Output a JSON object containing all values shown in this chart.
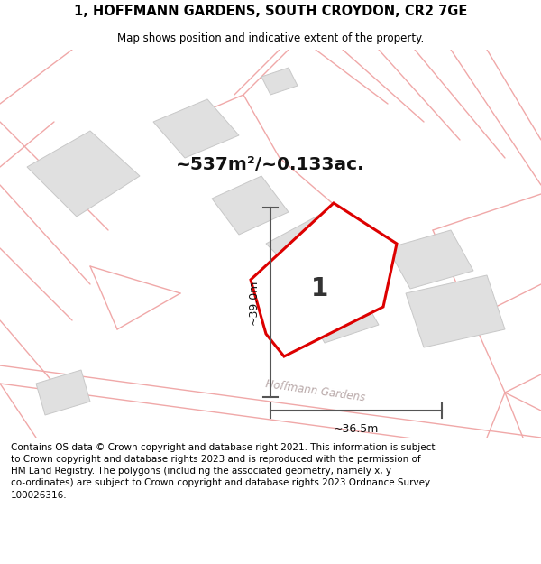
{
  "title_line1": "1, HOFFMANN GARDENS, SOUTH CROYDON, CR2 7GE",
  "title_line2": "Map shows position and indicative extent of the property.",
  "area_text": "~537m²/~0.133ac.",
  "label_number": "1",
  "dim_vertical": "~39.0m",
  "dim_horizontal": "~36.5m",
  "road_label": "Hoffmann Gardens",
  "footer_text": "Contains OS data © Crown copyright and database right 2021. This information is subject to Crown copyright and database rights 2023 and is reproduced with the permission of HM Land Registry. The polygons (including the associated geometry, namely x, y co-ordinates) are subject to Crown copyright and database rights 2023 Ordnance Survey 100026316.",
  "bg_color": "#ffffff",
  "map_bg_color": "#ffffff",
  "plot_outline_color": "#dd0000",
  "plot_fill_color": "#ffffff",
  "building_color": "#e0e0e0",
  "building_edge_color": "#c8c8c8",
  "road_line_color": "#f0a8a8",
  "dim_line_color": "#555555",
  "title_color": "#000000",
  "footer_color": "#000000",
  "road_label_color": "#b8a8a8",
  "number_color": "#333333"
}
